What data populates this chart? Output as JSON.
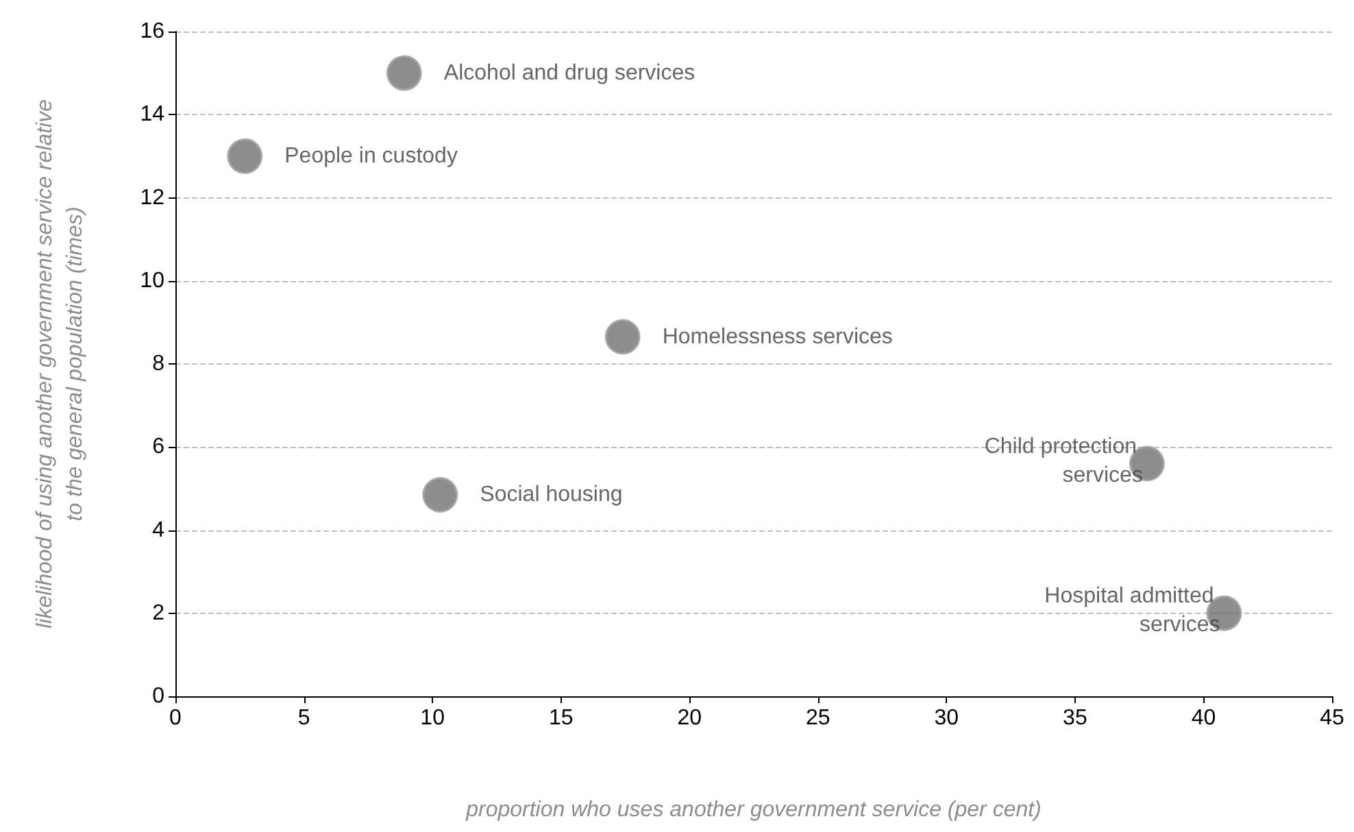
{
  "chart_data": {
    "type": "scatter",
    "xlabel": "proportion who uses another government service (per cent)",
    "ylabel": "likelihood of using another government service relative to the general population (times)",
    "series": [
      {
        "name": "Alcohol and drug services",
        "color": "#707070",
        "x": [
          8.9
        ],
        "values": [
          15.0
        ]
      },
      {
        "name": "People in custody",
        "color": "#707070",
        "x": [
          2.7
        ],
        "values": [
          13.0
        ]
      },
      {
        "name": "Homelessness services",
        "color": "#707070",
        "x": [
          17.4
        ],
        "values": [
          8.65
        ]
      },
      {
        "name": "Social housing",
        "color": "#707070",
        "x": [
          10.3
        ],
        "values": [
          4.85
        ]
      },
      {
        "name": "Child protection services",
        "color": "#707070",
        "x": [
          37.8
        ],
        "values": [
          5.6
        ]
      },
      {
        "name": "Hospital admitted services",
        "color": "#707070",
        "x": [
          40.8
        ],
        "values": [
          2.0
        ]
      }
    ],
    "xlim": [
      0,
      45
    ],
    "xticks": [
      0,
      5,
      10,
      15,
      20,
      25,
      30,
      35,
      40,
      45
    ],
    "ylim": [
      0,
      16
    ],
    "yticks": [
      0,
      2,
      4,
      6,
      8,
      10,
      12,
      14,
      16
    ],
    "grid": "y",
    "marker": "circle",
    "legend": false
  }
}
